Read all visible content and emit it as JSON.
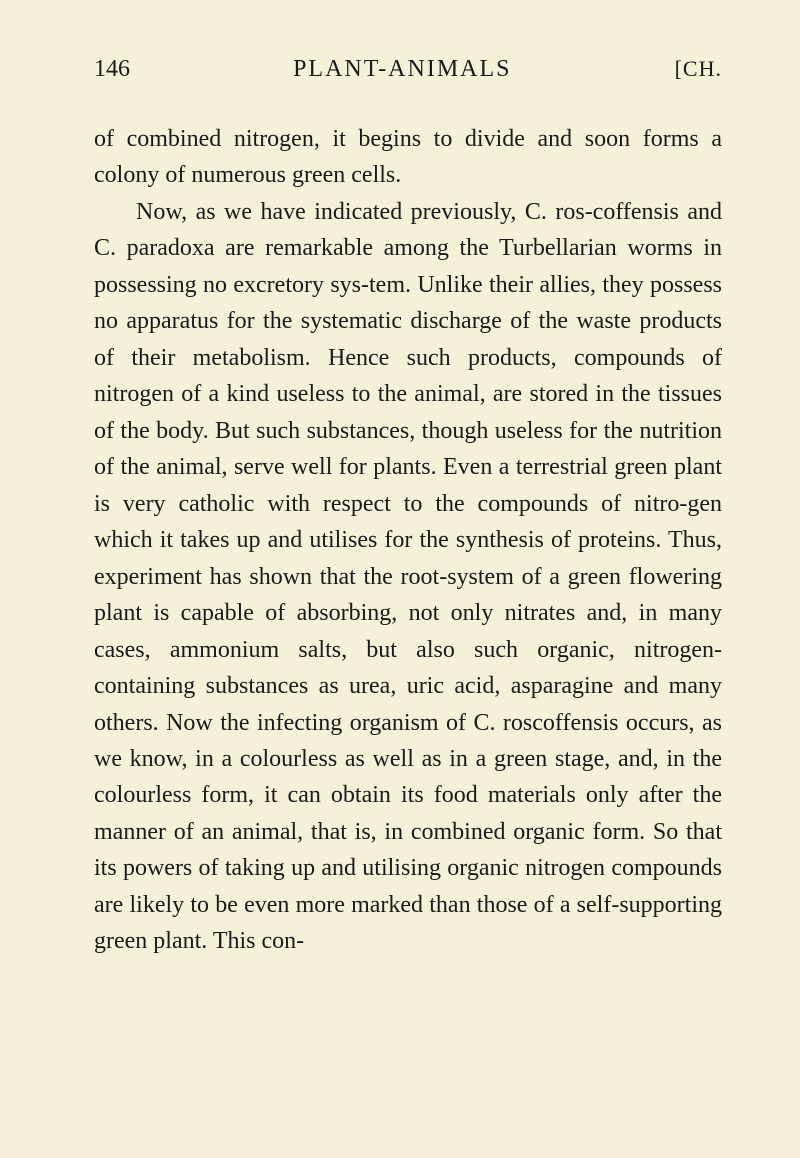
{
  "header": {
    "page_number": "146",
    "title": "PLANT-ANIMALS",
    "chapter_marker": "[CH."
  },
  "paragraphs": [
    {
      "text": "of combined nitrogen, it begins to divide and soon forms a colony of numerous green cells.",
      "indent": false
    },
    {
      "text": "Now, as we have indicated previously, C. ros-coffensis and C. paradoxa are remarkable among the Turbellarian worms in possessing no excretory sys-tem. Unlike their allies, they possess no apparatus for the systematic discharge of the waste products of their metabolism. Hence such products, compounds of nitrogen of a kind useless to the animal, are stored in the tissues of the body. But such substances, though useless for the nutrition of the animal, serve well for plants. Even a terrestrial green plant is very catholic with respect to the compounds of nitro-gen which it takes up and utilises for the synthesis of proteins. Thus, experiment has shown that the root-system of a green flowering plant is capable of absorbing, not only nitrates and, in many cases, ammonium salts, but also such organic, nitrogen-containing substances as urea, uric acid, asparagine and many others. Now the infecting organism of C. roscoffensis occurs, as we know, in a colourless as well as in a green stage, and, in the colourless form, it can obtain its food materials only after the manner of an animal, that is, in combined organic form. So that its powers of taking up and utilising organic nitrogen compounds are likely to be even more marked than those of a self-supporting green plant. This con-",
      "indent": true
    }
  ]
}
